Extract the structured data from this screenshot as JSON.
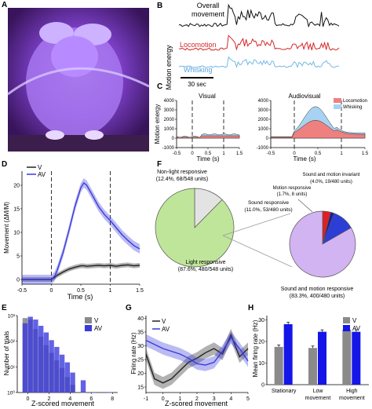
{
  "panels": {
    "A": "A",
    "B": "B",
    "C": "C",
    "D": "D",
    "E": "E",
    "F": "F",
    "G": "G",
    "H": "H"
  },
  "panel_b": {
    "ylabel": "Motion energy",
    "traces": [
      "Overall movement",
      "Locomotion",
      "Whisking"
    ],
    "scalebar": "30 sec",
    "colors": {
      "overall": "#111111",
      "locomotion": "#d62728",
      "whisking": "#74b8e6"
    }
  },
  "panel_c": {
    "ylabel": "Motion energy",
    "xlabel": "Time (s)",
    "left_title": "Visual",
    "right_title": "Audiovisual",
    "legend": [
      "Locomotion",
      "Whisking"
    ],
    "yticks": [
      "4000",
      "3000",
      "2000",
      "1000",
      "0",
      "-1000"
    ],
    "xticks": [
      "-0.5",
      "0",
      "0.5",
      "1",
      "1.5"
    ]
  },
  "panel_d": {
    "ylabel": "Movement (ΔM/M)",
    "xlabel": "Time (s)",
    "legend": [
      "V",
      "AV"
    ],
    "yticks": [
      "20",
      "15",
      "10",
      "5",
      "0"
    ],
    "xticks": [
      "-0.5",
      "0",
      "0.5",
      "1",
      "1.5"
    ]
  },
  "panel_e": {
    "ylabel": "Number of trials",
    "xlabel": "Z-scored movement",
    "legend": [
      "V",
      "AV"
    ],
    "yticks": [
      "10³",
      "10²",
      "10¹",
      "10⁰"
    ],
    "xticks": [
      "0",
      "2",
      "4",
      "6",
      "8"
    ]
  },
  "panel_f": {
    "left_pie": [
      {
        "label": "Non-light responsive",
        "detail": "(12.4%, 68/548 units)",
        "value": 12.4,
        "color": "#e3e3e3"
      },
      {
        "label": "Light responsive",
        "detail": "(87.6%, 480/548 units)",
        "value": 87.6,
        "color": "#bfe59a"
      }
    ],
    "right_pie": [
      {
        "label": "Sound and motion invariant",
        "detail": "(4.0%, 19/480 units)",
        "value": 4.0,
        "color": "#e02020"
      },
      {
        "label": "Motion responsive",
        "detail": "(1.7%, 8 units)",
        "value": 1.7,
        "color": "#1c1c9a"
      },
      {
        "label": "Sound responsive",
        "detail": "(11.0%, 53/480 units)",
        "value": 11.0,
        "color": "#2b3fd6"
      },
      {
        "label": "Sound and motion responsive",
        "detail": "(83.3%, 400/480 units)",
        "value": 83.3,
        "color": "#d2b4f2"
      }
    ]
  },
  "panel_g": {
    "ylabel": "Firing rate (Hz)",
    "xlabel": "Z-scored movement",
    "legend": [
      "V",
      "AV"
    ],
    "yticks": [
      "40",
      "35",
      "30",
      "25",
      "20",
      "15"
    ],
    "xticks": [
      "-1",
      "0",
      "1",
      "2",
      "3",
      "4",
      "5"
    ]
  },
  "panel_h": {
    "ylabel": "Mean firing rate (Hz)",
    "legend": [
      "V",
      "AV"
    ],
    "yticks": [
      "30",
      "20",
      "10",
      "0"
    ],
    "categories": [
      "Stationary",
      "Low movement",
      "High movement"
    ],
    "category_lines": [
      [
        "Stationary"
      ],
      [
        "Low",
        "movement"
      ],
      [
        "High",
        "movement"
      ]
    ]
  },
  "chart_data": [
    {
      "panel": "D",
      "type": "line",
      "xlabel": "Time (s)",
      "ylabel": "Movement (ΔM/M)",
      "xlim": [
        -0.5,
        1.5
      ],
      "ylim": [
        -1,
        23
      ],
      "x": [
        -0.5,
        -0.25,
        0,
        0.05,
        0.1,
        0.2,
        0.3,
        0.4,
        0.5,
        0.55,
        0.6,
        0.7,
        0.8,
        0.9,
        1.0,
        1.1,
        1.2,
        1.3,
        1.4,
        1.5
      ],
      "series": [
        {
          "name": "V",
          "color": "#222222",
          "values": [
            0,
            0,
            0,
            0.4,
            0.9,
            1.6,
            2.2,
            2.6,
            2.9,
            2.9,
            2.8,
            2.9,
            3.0,
            2.9,
            3.0,
            2.8,
            3.0,
            3.1,
            2.9,
            3.0
          ]
        },
        {
          "name": "AV",
          "color": "#3b3bdc",
          "values": [
            0,
            0,
            0,
            0.6,
            2.0,
            5.8,
            10.5,
            15.5,
            19.5,
            20.5,
            20.0,
            17.8,
            15.5,
            13.8,
            12.5,
            11.0,
            9.5,
            8.3,
            7.2,
            6.5
          ]
        }
      ]
    },
    {
      "panel": "E",
      "type": "bar",
      "xlabel": "Z-scored movement",
      "ylabel": "Number of trials",
      "x": [
        -0.5,
        0,
        0.5,
        1,
        1.5,
        2,
        2.5,
        3,
        3.5,
        4,
        5,
        6,
        7.5
      ],
      "series": [
        {
          "name": "V",
          "color": "#8a8a8a",
          "values": [
            800,
            700,
            300,
            150,
            70,
            35,
            18,
            9,
            4,
            2,
            1,
            1,
            1
          ]
        },
        {
          "name": "AV",
          "color": "#3b3bdc",
          "values": [
            500,
            900,
            700,
            400,
            220,
            110,
            60,
            30,
            15,
            6,
            3,
            1,
            1
          ]
        }
      ]
    },
    {
      "panel": "G",
      "type": "line",
      "xlabel": "Z-scored movement",
      "ylabel": "Firing rate (Hz)",
      "xlim": [
        -1,
        5
      ],
      "ylim": [
        13,
        41
      ],
      "x": [
        -1,
        -0.5,
        0,
        0.5,
        1,
        1.5,
        2,
        2.5,
        3,
        3.5,
        4,
        4.5,
        5
      ],
      "series": [
        {
          "name": "V",
          "color": "#222222",
          "values": [
            27,
            18,
            16.5,
            18,
            21,
            24,
            25.5,
            27.5,
            29,
            27,
            34,
            26,
            29
          ]
        },
        {
          "name": "AV",
          "color": "#3b3bdc",
          "values": [
            32,
            30.5,
            29,
            28,
            27,
            25.5,
            23.5,
            23,
            24,
            28,
            33,
            29,
            24.5
          ]
        }
      ]
    },
    {
      "panel": "H",
      "type": "bar",
      "ylabel": "Mean firing rate (Hz)",
      "ylim": [
        0,
        32
      ],
      "categories": [
        "Stationary",
        "Low movement",
        "High movement"
      ],
      "series": [
        {
          "name": "V",
          "color": "#8a8a8a",
          "values": [
            17.5,
            17,
            25.5
          ]
        },
        {
          "name": "AV",
          "color": "#1515e8",
          "values": [
            28,
            24.5,
            24.5
          ]
        }
      ]
    }
  ]
}
